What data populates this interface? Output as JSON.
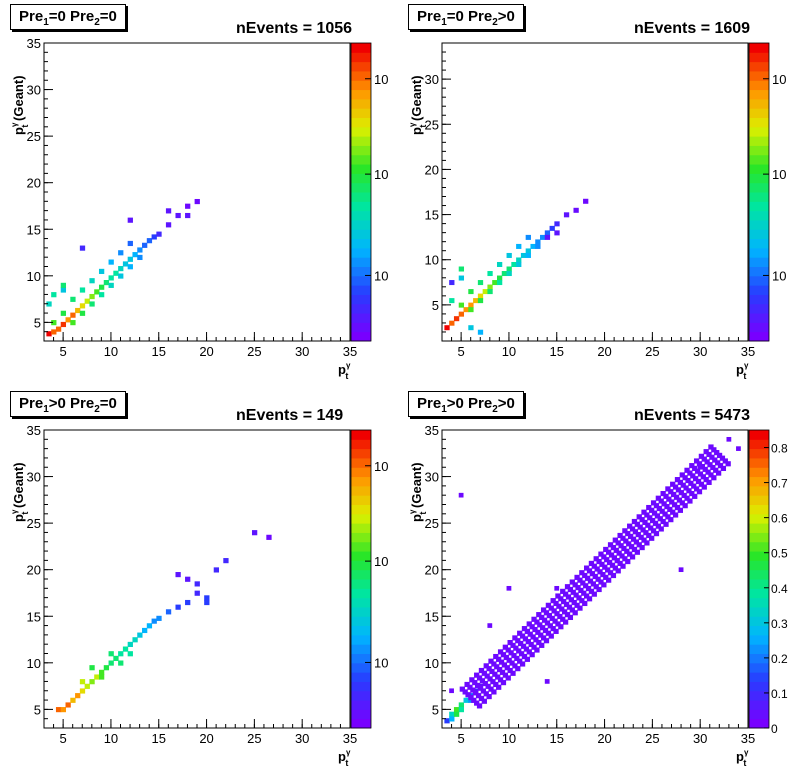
{
  "panels": [
    {
      "label_parts": [
        "Pre",
        "1",
        "=0  Pre",
        "2",
        "=0"
      ],
      "nevents": "nEvents = 1056",
      "palette_labels": [
        "10",
        "10",
        "10"
      ],
      "chart_data": {
        "type": "heatmap",
        "x_ticks": [
          "5",
          "10",
          "15",
          "20",
          "25",
          "30",
          "35"
        ],
        "y_ticks": [
          "5",
          "10",
          "15",
          "20",
          "25",
          "30",
          "35"
        ],
        "xlim": [
          3,
          35
        ],
        "ylim": [
          3,
          35
        ],
        "xlabel": "p_t^γ",
        "ylabel": "p_t^γ (Geant)",
        "points": [
          [
            3.5,
            3.8,
            1.0
          ],
          [
            4,
            4,
            0.9
          ],
          [
            4.5,
            4.3,
            0.9
          ],
          [
            5,
            4.8,
            0.95
          ],
          [
            5.5,
            5.3,
            0.85
          ],
          [
            6,
            5.8,
            0.9
          ],
          [
            6.5,
            6.3,
            0.8
          ],
          [
            7,
            6.8,
            0.75
          ],
          [
            7.5,
            7.3,
            0.7
          ],
          [
            8,
            7.8,
            0.65
          ],
          [
            8.5,
            8.3,
            0.6
          ],
          [
            9,
            8.8,
            0.55
          ],
          [
            9.5,
            9.3,
            0.5
          ],
          [
            10,
            9.8,
            0.45
          ],
          [
            10.5,
            10.3,
            0.45
          ],
          [
            11,
            10.8,
            0.4
          ],
          [
            11.5,
            11.3,
            0.35
          ],
          [
            12,
            11.8,
            0.35
          ],
          [
            12.5,
            12.3,
            0.3
          ],
          [
            13,
            12.8,
            0.25
          ],
          [
            13.5,
            13.3,
            0.2
          ],
          [
            14,
            13.8,
            0.2
          ],
          [
            14.5,
            14.2,
            0.15
          ],
          [
            15,
            14.5,
            0.1
          ],
          [
            16,
            15.5,
            0.05
          ],
          [
            17,
            16.5,
            0.05
          ],
          [
            18,
            17.5,
            0.02
          ],
          [
            4,
            5,
            0.6
          ],
          [
            5,
            6,
            0.55
          ],
          [
            6,
            7.5,
            0.5
          ],
          [
            7,
            8.5,
            0.45
          ],
          [
            8,
            9.5,
            0.4
          ],
          [
            9,
            10.5,
            0.35
          ],
          [
            10,
            11.5,
            0.3
          ],
          [
            11,
            12.5,
            0.25
          ],
          [
            12,
            13.5,
            0.2
          ],
          [
            6,
            5,
            0.6
          ],
          [
            7,
            6,
            0.55
          ],
          [
            8,
            7,
            0.5
          ],
          [
            9,
            8,
            0.45
          ],
          [
            10,
            9,
            0.4
          ],
          [
            11,
            10,
            0.35
          ],
          [
            12,
            11,
            0.3
          ],
          [
            13,
            12,
            0.25
          ],
          [
            4,
            8,
            0.45
          ],
          [
            5,
            8.5,
            0.35
          ],
          [
            5,
            9,
            0.5
          ],
          [
            3.5,
            7,
            0.4
          ],
          [
            7,
            13,
            0.1
          ],
          [
            12,
            16,
            0.05
          ],
          [
            16,
            17,
            0.05
          ],
          [
            19,
            18,
            0.02
          ],
          [
            18,
            16.5,
            0.05
          ]
        ]
      }
    },
    {
      "label_parts": [
        "Pre",
        "1",
        "=0  Pre",
        "2",
        ">0"
      ],
      "nevents": "nEvents = 1609",
      "palette_labels": [
        "10",
        "10",
        "10"
      ],
      "chart_data": {
        "type": "heatmap",
        "x_ticks": [
          "5",
          "10",
          "15",
          "20",
          "25",
          "30",
          "35"
        ],
        "y_ticks": [
          "5",
          "10",
          "15",
          "20",
          "25",
          "30"
        ],
        "xlim": [
          3,
          35
        ],
        "ylim": [
          1,
          34
        ],
        "xlabel": "p_t^γ",
        "ylabel": "p_t^γ (Geant)",
        "points": [
          [
            3.5,
            2.5,
            1.0
          ],
          [
            4,
            3,
            0.9
          ],
          [
            4.5,
            3.5,
            0.95
          ],
          [
            5,
            4,
            0.9
          ],
          [
            5.5,
            4.5,
            0.85
          ],
          [
            6,
            5,
            0.85
          ],
          [
            6.5,
            5.5,
            0.8
          ],
          [
            7,
            6,
            0.75
          ],
          [
            7.5,
            6.5,
            0.7
          ],
          [
            8,
            7,
            0.65
          ],
          [
            8.5,
            7.5,
            0.6
          ],
          [
            9,
            8,
            0.55
          ],
          [
            9.5,
            8.5,
            0.5
          ],
          [
            10,
            9,
            0.5
          ],
          [
            10.5,
            9.5,
            0.45
          ],
          [
            11,
            10,
            0.4
          ],
          [
            11.5,
            10.5,
            0.35
          ],
          [
            12,
            11,
            0.35
          ],
          [
            12.5,
            11.5,
            0.3
          ],
          [
            13,
            12,
            0.25
          ],
          [
            13.5,
            12.5,
            0.25
          ],
          [
            14,
            13,
            0.2
          ],
          [
            14.5,
            13.5,
            0.15
          ],
          [
            15,
            14,
            0.1
          ],
          [
            16,
            15,
            0.05
          ],
          [
            17,
            15.5,
            0.03
          ],
          [
            18,
            16.5,
            0.02
          ],
          [
            5,
            5,
            0.6
          ],
          [
            6,
            6.5,
            0.55
          ],
          [
            7,
            7.5,
            0.5
          ],
          [
            8,
            8.5,
            0.45
          ],
          [
            9,
            9.5,
            0.4
          ],
          [
            10,
            10.5,
            0.35
          ],
          [
            11,
            11.5,
            0.3
          ],
          [
            12,
            12.5,
            0.25
          ],
          [
            6,
            4.5,
            0.6
          ],
          [
            7,
            5.5,
            0.55
          ],
          [
            8,
            6.5,
            0.5
          ],
          [
            9,
            7.5,
            0.45
          ],
          [
            10,
            8.5,
            0.4
          ],
          [
            11,
            9.5,
            0.35
          ],
          [
            12,
            10.5,
            0.3
          ],
          [
            13,
            11.5,
            0.25
          ],
          [
            4,
            5.5,
            0.45
          ],
          [
            4,
            7.5,
            0.1
          ],
          [
            5,
            8,
            0.35
          ],
          [
            5,
            9,
            0.5
          ],
          [
            7,
            2,
            0.3
          ],
          [
            6,
            2.5,
            0.35
          ],
          [
            14,
            12.5,
            0.05
          ],
          [
            15,
            13,
            0.05
          ]
        ]
      }
    },
    {
      "label_parts": [
        "Pre",
        "1",
        ">0  Pre",
        "2",
        "=0"
      ],
      "nevents": "nEvents = 149",
      "palette_labels": [
        "10",
        "10",
        "10"
      ],
      "chart_data": {
        "type": "heatmap",
        "x_ticks": [
          "5",
          "10",
          "15",
          "20",
          "25",
          "30",
          "35"
        ],
        "y_ticks": [
          "5",
          "10",
          "15",
          "20",
          "25",
          "30",
          "35"
        ],
        "xlim": [
          3,
          35
        ],
        "ylim": [
          3,
          35
        ],
        "xlabel": "p_t^γ",
        "ylabel": "p_t^γ (Geant)",
        "points": [
          [
            4.5,
            5,
            0.9
          ],
          [
            5,
            5,
            0.85
          ],
          [
            5.5,
            5.5,
            0.9
          ],
          [
            6,
            6,
            0.8
          ],
          [
            6.5,
            6.5,
            0.85
          ],
          [
            7,
            7,
            0.75
          ],
          [
            7.5,
            7.5,
            0.7
          ],
          [
            8,
            8,
            0.65
          ],
          [
            8.5,
            8.5,
            0.7
          ],
          [
            9,
            9,
            0.6
          ],
          [
            9.5,
            9.5,
            0.55
          ],
          [
            10,
            10,
            0.5
          ],
          [
            10.5,
            10.5,
            0.5
          ],
          [
            11,
            11,
            0.45
          ],
          [
            11.5,
            11.5,
            0.45
          ],
          [
            12,
            12,
            0.4
          ],
          [
            12.5,
            12.5,
            0.4
          ],
          [
            13,
            13,
            0.35
          ],
          [
            13.5,
            13.5,
            0.3
          ],
          [
            14,
            14,
            0.3
          ],
          [
            14.5,
            14.5,
            0.25
          ],
          [
            15,
            14.8,
            0.25
          ],
          [
            16,
            15.5,
            0.2
          ],
          [
            17,
            16,
            0.15
          ],
          [
            18,
            16.5,
            0.15
          ],
          [
            19,
            17.5,
            0.1
          ],
          [
            18,
            19,
            0.05
          ],
          [
            19,
            18.5,
            0.1
          ],
          [
            20,
            17,
            0.15
          ],
          [
            20,
            16.5,
            0.15
          ],
          [
            21,
            20,
            0.1
          ],
          [
            22,
            21,
            0.1
          ],
          [
            25,
            24,
            0.05
          ],
          [
            26.5,
            23.5,
            0.02
          ],
          [
            17,
            19.5,
            0.05
          ],
          [
            8,
            9.5,
            0.55
          ],
          [
            9,
            8.5,
            0.6
          ],
          [
            10,
            11,
            0.5
          ],
          [
            11,
            10,
            0.5
          ],
          [
            12,
            11,
            0.45
          ],
          [
            7,
            8,
            0.7
          ]
        ]
      }
    },
    {
      "label_parts": [
        "Pre",
        "1",
        ">0  Pre",
        "2",
        ">0"
      ],
      "nevents": "nEvents = 5473",
      "palette_labels": [
        "0",
        "0.1",
        "0.2",
        "0.3",
        "0.4",
        "0.5",
        "0.6",
        "0.7",
        "0.8"
      ],
      "chart_data": {
        "type": "heatmap",
        "x_ticks": [
          "5",
          "10",
          "15",
          "20",
          "25",
          "30",
          "35"
        ],
        "y_ticks": [
          "5",
          "10",
          "15",
          "20",
          "25",
          "30",
          "35"
        ],
        "xlim": [
          3,
          35
        ],
        "ylim": [
          3,
          35
        ],
        "zlim": [
          0,
          0.85
        ],
        "xlabel": "p_t^γ",
        "ylabel": "p_t^γ (Geant)",
        "points": [
          [
            3.5,
            3.8,
            0.15
          ],
          [
            4,
            4.5,
            0.4
          ],
          [
            4.5,
            5,
            0.6
          ],
          [
            5,
            5.5,
            0.5
          ],
          [
            5.5,
            6,
            0.35
          ],
          [
            6,
            6.5,
            0.2
          ],
          [
            6.5,
            7,
            0.1
          ],
          [
            7,
            7.5,
            0.05
          ],
          [
            4,
            4,
            0.3
          ],
          [
            5,
            5,
            0.45
          ],
          [
            6,
            6,
            0.25
          ],
          [
            4.5,
            4.5,
            0.55
          ]
        ]
      }
    }
  ]
}
